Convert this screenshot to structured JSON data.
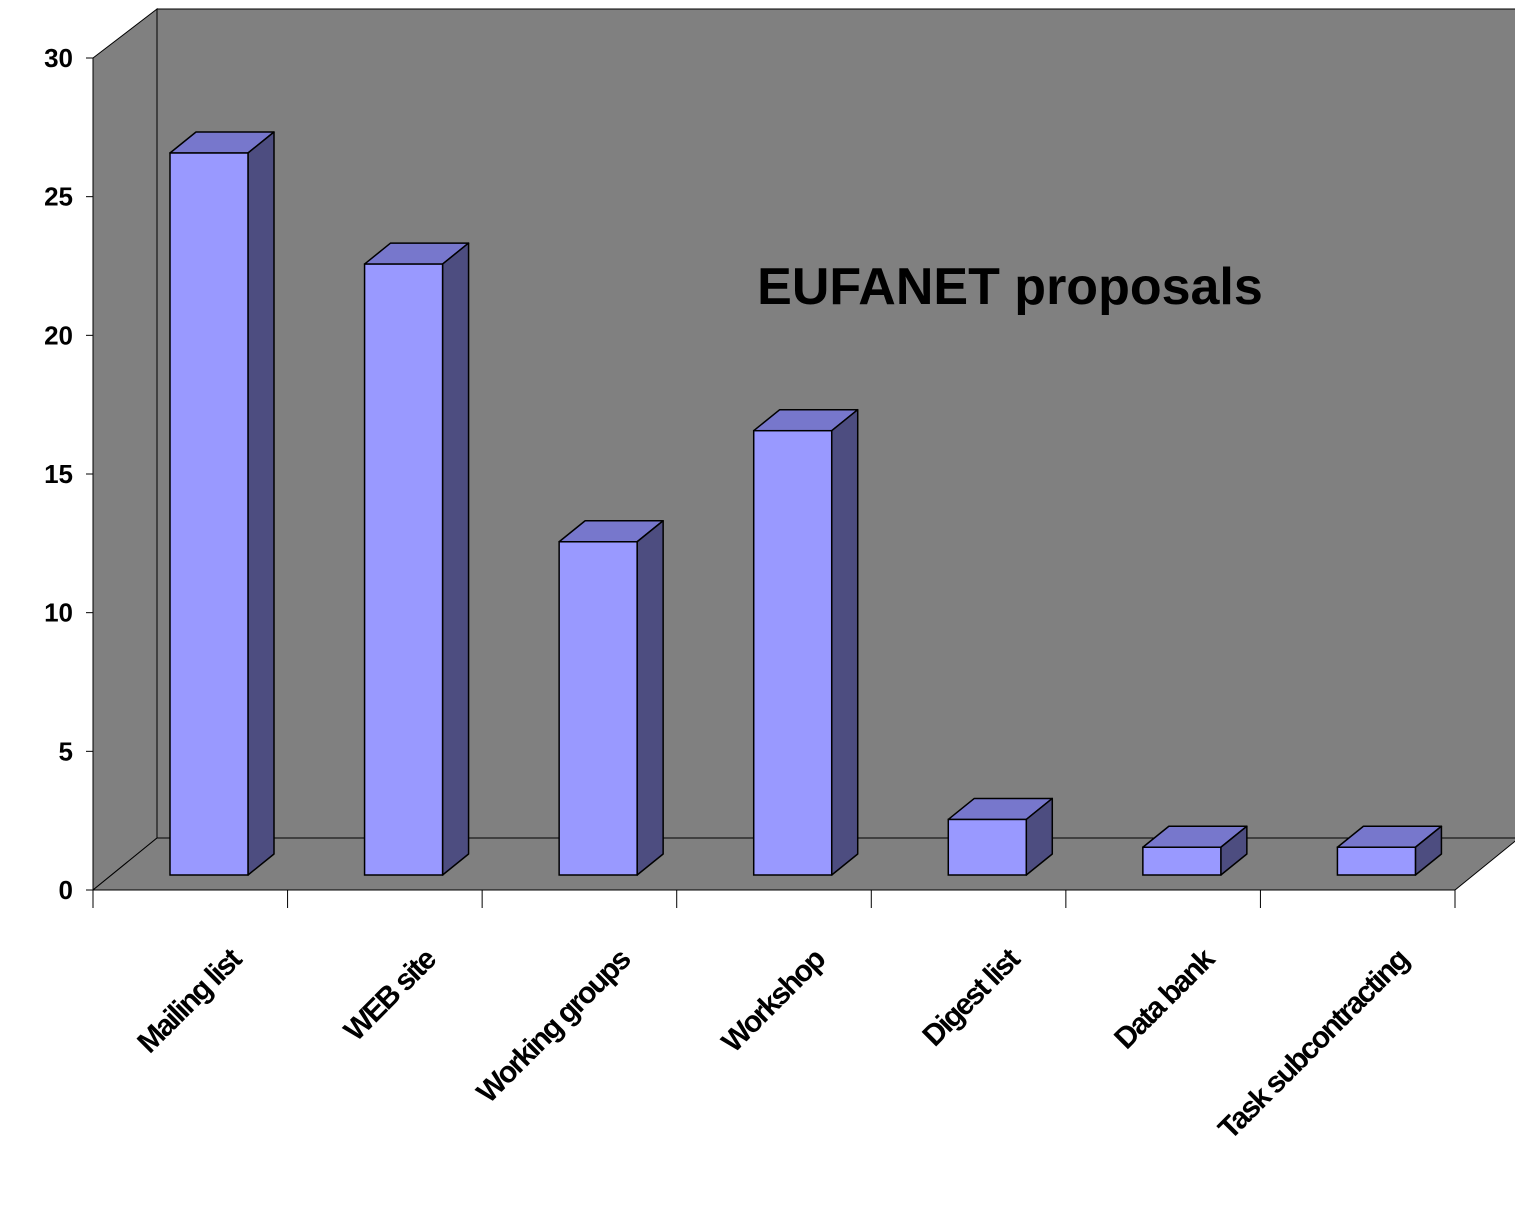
{
  "chart_data": {
    "type": "bar",
    "style": "3d-column",
    "title": "EUFANET proposals",
    "categories": [
      "Mailing list",
      "WEB site",
      "Working groups",
      "Workshop",
      "Digest list",
      "Data bank",
      "Task subcontracting"
    ],
    "values": [
      26,
      22,
      12,
      16,
      2,
      1,
      1
    ],
    "ylim": [
      0,
      30
    ],
    "yticks": [
      "0",
      "5",
      "10",
      "15",
      "20",
      "25",
      "30"
    ],
    "xlabel": "",
    "ylabel": "",
    "grid": false,
    "legend": "none",
    "colors": {
      "wall": "#808080",
      "floor": "#808080",
      "bar_front": "#9999ff",
      "bar_top": "#7777cc",
      "bar_side": "#4d4d80",
      "outline": "#000000"
    }
  }
}
